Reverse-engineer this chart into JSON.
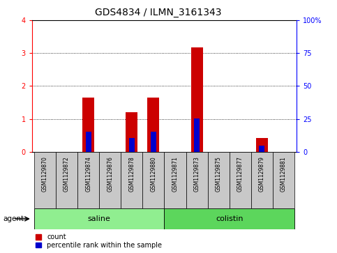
{
  "title": "GDS4834 / ILMN_3161343",
  "samples": [
    "GSM1129870",
    "GSM1129872",
    "GSM1129874",
    "GSM1129876",
    "GSM1129878",
    "GSM1129880",
    "GSM1129871",
    "GSM1129873",
    "GSM1129875",
    "GSM1129877",
    "GSM1129879",
    "GSM1129881"
  ],
  "count_values": [
    0,
    0,
    1.65,
    0,
    1.2,
    1.65,
    0,
    3.18,
    0,
    0,
    0.42,
    0
  ],
  "percentile_values": [
    0,
    0,
    0.62,
    0,
    0.42,
    0.62,
    0,
    1.02,
    0,
    0,
    0.18,
    0
  ],
  "groups": [
    {
      "label": "saline",
      "start": 0,
      "end": 6,
      "color": "#90EE90"
    },
    {
      "label": "colistin",
      "start": 6,
      "end": 12,
      "color": "#5CD65C"
    }
  ],
  "group_row_label": "agent",
  "ylim_left": [
    0,
    4
  ],
  "ylim_right": [
    0,
    100
  ],
  "yticks_left": [
    0,
    1,
    2,
    3,
    4
  ],
  "yticks_right": [
    0,
    25,
    50,
    75,
    100
  ],
  "yticklabels_right": [
    "0",
    "25",
    "50",
    "75",
    "100%"
  ],
  "bar_color_red": "#cc0000",
  "bar_color_blue": "#0000cc",
  "bar_width": 0.55,
  "tick_bg_color": "#c8c8c8",
  "legend_count_label": "count",
  "legend_percentile_label": "percentile rank within the sample",
  "title_fontsize": 10,
  "tick_fontsize": 7,
  "label_fontsize": 8,
  "sample_fontsize": 5.5
}
